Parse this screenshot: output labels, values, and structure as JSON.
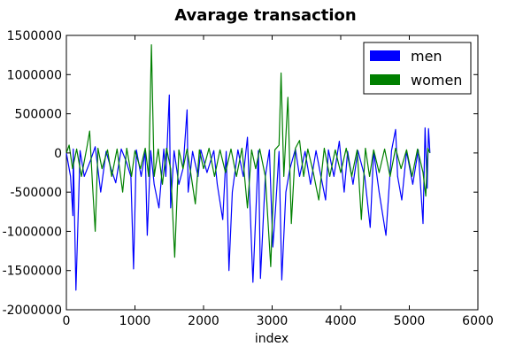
{
  "chart_data": {
    "type": "line",
    "title": "Avarage transaction",
    "xlabel": "index",
    "ylabel": "",
    "xlim": [
      0,
      6000
    ],
    "ylim": [
      -2000000,
      1500000
    ],
    "x_ticks": [
      0,
      1000,
      2000,
      3000,
      4000,
      5000,
      6000
    ],
    "y_ticks": [
      -2000000,
      -1500000,
      -1000000,
      -500000,
      0,
      500000,
      1000000,
      1500000
    ],
    "x_tick_labels": [
      "0",
      "1000",
      "2000",
      "3000",
      "4000",
      "5000",
      "6000"
    ],
    "y_tick_labels": [
      "-2000000",
      "-1500000",
      "-1000000",
      "-500000",
      "0",
      "500000",
      "1000000",
      "1500000"
    ],
    "legend_position": "top-right",
    "grid": false,
    "series": [
      {
        "name": "men",
        "color": "#0000ff",
        "x": [
          0,
          60,
          95,
          100,
          140,
          200,
          260,
          350,
          420,
          500,
          580,
          650,
          720,
          800,
          870,
          940,
          980,
          1020,
          1090,
          1150,
          1180,
          1230,
          1280,
          1350,
          1420,
          1450,
          1500,
          1520,
          1570,
          1640,
          1700,
          1760,
          1775,
          1840,
          1920,
          1960,
          2050,
          2150,
          2200,
          2280,
          2330,
          2370,
          2420,
          2500,
          2580,
          2640,
          2720,
          2800,
          2830,
          2900,
          2960,
          3010,
          3050,
          3100,
          3140,
          3200,
          3260,
          3340,
          3400,
          3480,
          3560,
          3640,
          3700,
          3780,
          3820,
          3900,
          3980,
          4050,
          4100,
          4180,
          4250,
          4350,
          4430,
          4480,
          4560,
          4660,
          4740,
          4800,
          4830,
          4890,
          4960,
          5050,
          5130,
          5200,
          5230,
          5260,
          5280,
          5300
        ],
        "values": [
          0,
          -300000,
          -800000,
          50000,
          -1750000,
          30000,
          -300000,
          -100000,
          80000,
          -500000,
          20000,
          -200000,
          -380000,
          50000,
          -100000,
          -300000,
          -1480000,
          40000,
          -300000,
          20000,
          -1050000,
          30000,
          -400000,
          -700000,
          50000,
          -300000,
          740000,
          -700000,
          30000,
          -400000,
          -200000,
          550000,
          -500000,
          20000,
          -300000,
          40000,
          -250000,
          30000,
          -400000,
          -850000,
          20000,
          -1500000,
          -500000,
          40000,
          -300000,
          200000,
          -1650000,
          30000,
          -1600000,
          -300000,
          40000,
          -1200000,
          -700000,
          20000,
          -1620000,
          -500000,
          -200000,
          50000,
          -300000,
          20000,
          -400000,
          30000,
          -250000,
          -600000,
          40000,
          -300000,
          150000,
          -500000,
          20000,
          -400000,
          30000,
          -300000,
          -950000,
          20000,
          -500000,
          -1050000,
          30000,
          300000,
          -300000,
          -600000,
          20000,
          -400000,
          40000,
          -900000,
          320000,
          -450000,
          310000,
          0
        ]
      },
      {
        "name": "women",
        "color": "#008000",
        "x": [
          0,
          40,
          90,
          150,
          220,
          300,
          340,
          380,
          420,
          460,
          520,
          600,
          660,
          740,
          820,
          880,
          950,
          1000,
          1080,
          1150,
          1200,
          1240,
          1280,
          1340,
          1400,
          1460,
          1520,
          1580,
          1640,
          1700,
          1760,
          1820,
          1880,
          1940,
          2000,
          2080,
          2160,
          2240,
          2320,
          2400,
          2480,
          2560,
          2640,
          2700,
          2760,
          2820,
          2900,
          2980,
          3040,
          3100,
          3130,
          3170,
          3230,
          3280,
          3340,
          3400,
          3460,
          3520,
          3600,
          3680,
          3760,
          3840,
          3920,
          4000,
          4080,
          4160,
          4240,
          4300,
          4360,
          4420,
          4480,
          4560,
          4640,
          4720,
          4800,
          4880,
          4960,
          5040,
          5120,
          5200,
          5240,
          5270,
          5300
        ],
        "values": [
          0,
          100000,
          -200000,
          50000,
          -300000,
          80000,
          280000,
          -400000,
          -1000000,
          60000,
          -200000,
          40000,
          -300000,
          50000,
          -500000,
          60000,
          -300000,
          30000,
          -200000,
          60000,
          -300000,
          1380000,
          -300000,
          50000,
          -400000,
          60000,
          -200000,
          -1330000,
          40000,
          -200000,
          50000,
          -300000,
          -650000,
          40000,
          -200000,
          60000,
          -300000,
          40000,
          -250000,
          50000,
          -300000,
          60000,
          -700000,
          40000,
          -200000,
          50000,
          -300000,
          -1450000,
          40000,
          100000,
          1020000,
          -300000,
          710000,
          -900000,
          60000,
          160000,
          -300000,
          50000,
          -250000,
          -600000,
          60000,
          -300000,
          40000,
          -250000,
          60000,
          -300000,
          40000,
          -850000,
          60000,
          -300000,
          40000,
          -250000,
          50000,
          -300000,
          60000,
          -200000,
          40000,
          -300000,
          50000,
          -250000,
          -550000,
          60000,
          0
        ]
      }
    ]
  }
}
